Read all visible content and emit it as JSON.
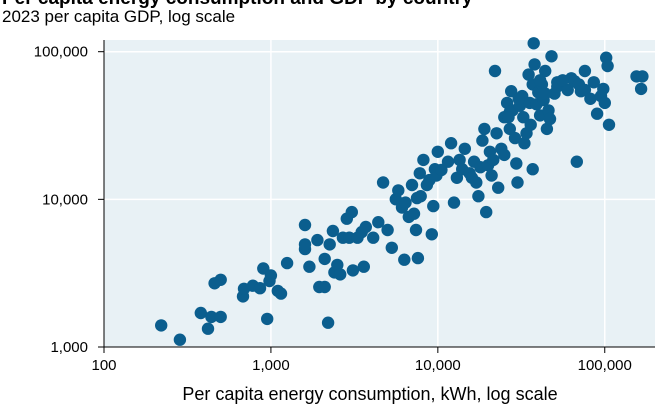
{
  "chart_data": {
    "type": "scatter",
    "title": "Per capita energy consumption and GDP by country",
    "subtitle": "2023 per capita GDP, log scale",
    "xlabel": "Per capita energy consumption, kWh, log scale",
    "ylabel": "",
    "x_scale": "log",
    "y_scale": "log",
    "xlim": [
      100,
      200000
    ],
    "ylim": [
      1000,
      120000
    ],
    "x_ticks": [
      100,
      1000,
      10000,
      100000
    ],
    "x_tick_labels": [
      "100",
      "1,000",
      "10,000",
      "100,000"
    ],
    "y_ticks": [
      1000,
      10000,
      100000
    ],
    "y_tick_labels": [
      "1,000",
      "10,000",
      "100,000"
    ],
    "grid": true,
    "colors": {
      "point": "#0b5e8e",
      "plot_bg": "#e8f1f5",
      "grid": "#ffffff"
    },
    "points": [
      {
        "x": 220,
        "y": 1400
      },
      {
        "x": 285,
        "y": 1120
      },
      {
        "x": 380,
        "y": 1700
      },
      {
        "x": 420,
        "y": 1330
      },
      {
        "x": 440,
        "y": 1600
      },
      {
        "x": 500,
        "y": 1600
      },
      {
        "x": 460,
        "y": 2700
      },
      {
        "x": 500,
        "y": 2850
      },
      {
        "x": 680,
        "y": 2200
      },
      {
        "x": 690,
        "y": 2480
      },
      {
        "x": 780,
        "y": 2600
      },
      {
        "x": 860,
        "y": 2500
      },
      {
        "x": 900,
        "y": 3400
      },
      {
        "x": 980,
        "y": 2800
      },
      {
        "x": 1000,
        "y": 3050
      },
      {
        "x": 950,
        "y": 1550
      },
      {
        "x": 1100,
        "y": 2400
      },
      {
        "x": 1150,
        "y": 2300
      },
      {
        "x": 1250,
        "y": 3700
      },
      {
        "x": 1600,
        "y": 4600
      },
      {
        "x": 1600,
        "y": 4950
      },
      {
        "x": 1600,
        "y": 6700
      },
      {
        "x": 1700,
        "y": 3500
      },
      {
        "x": 1900,
        "y": 5300
      },
      {
        "x": 1950,
        "y": 2550
      },
      {
        "x": 2100,
        "y": 2550
      },
      {
        "x": 2100,
        "y": 3950
      },
      {
        "x": 2200,
        "y": 1460
      },
      {
        "x": 2250,
        "y": 4950
      },
      {
        "x": 2350,
        "y": 6100
      },
      {
        "x": 2400,
        "y": 3200
      },
      {
        "x": 2500,
        "y": 3600
      },
      {
        "x": 2600,
        "y": 3100
      },
      {
        "x": 2700,
        "y": 5500
      },
      {
        "x": 2850,
        "y": 7400
      },
      {
        "x": 2950,
        "y": 5500
      },
      {
        "x": 3050,
        "y": 8200
      },
      {
        "x": 3100,
        "y": 3300
      },
      {
        "x": 3300,
        "y": 5500
      },
      {
        "x": 3500,
        "y": 6000
      },
      {
        "x": 3600,
        "y": 3500
      },
      {
        "x": 3700,
        "y": 6500
      },
      {
        "x": 4100,
        "y": 5500
      },
      {
        "x": 4400,
        "y": 7000
      },
      {
        "x": 4700,
        "y": 13000
      },
      {
        "x": 5000,
        "y": 6200
      },
      {
        "x": 5300,
        "y": 4700
      },
      {
        "x": 5600,
        "y": 10000
      },
      {
        "x": 5800,
        "y": 11500
      },
      {
        "x": 6100,
        "y": 8800
      },
      {
        "x": 6300,
        "y": 3900
      },
      {
        "x": 6400,
        "y": 9500
      },
      {
        "x": 6700,
        "y": 7600
      },
      {
        "x": 7000,
        "y": 12500
      },
      {
        "x": 7200,
        "y": 8000
      },
      {
        "x": 7400,
        "y": 6200
      },
      {
        "x": 7500,
        "y": 10200
      },
      {
        "x": 7600,
        "y": 4000
      },
      {
        "x": 7800,
        "y": 15000
      },
      {
        "x": 7900,
        "y": 10500
      },
      {
        "x": 8200,
        "y": 18500
      },
      {
        "x": 8600,
        "y": 12500
      },
      {
        "x": 8900,
        "y": 13500
      },
      {
        "x": 9200,
        "y": 5800
      },
      {
        "x": 9400,
        "y": 9000
      },
      {
        "x": 9600,
        "y": 16000
      },
      {
        "x": 9800,
        "y": 14500
      },
      {
        "x": 10000,
        "y": 21000
      },
      {
        "x": 10500,
        "y": 15800
      },
      {
        "x": 11500,
        "y": 18000
      },
      {
        "x": 12000,
        "y": 24000
      },
      {
        "x": 12500,
        "y": 9500
      },
      {
        "x": 13000,
        "y": 14000
      },
      {
        "x": 13500,
        "y": 18500
      },
      {
        "x": 14000,
        "y": 16000
      },
      {
        "x": 14500,
        "y": 22000
      },
      {
        "x": 15500,
        "y": 15000
      },
      {
        "x": 16000,
        "y": 14000
      },
      {
        "x": 16500,
        "y": 18000
      },
      {
        "x": 17000,
        "y": 13000
      },
      {
        "x": 17500,
        "y": 10500
      },
      {
        "x": 18000,
        "y": 16500
      },
      {
        "x": 18500,
        "y": 25000
      },
      {
        "x": 19000,
        "y": 30000
      },
      {
        "x": 19500,
        "y": 8200
      },
      {
        "x": 20000,
        "y": 17000
      },
      {
        "x": 20500,
        "y": 21000
      },
      {
        "x": 21000,
        "y": 14500
      },
      {
        "x": 21500,
        "y": 18500
      },
      {
        "x": 22000,
        "y": 74000
      },
      {
        "x": 22500,
        "y": 28000
      },
      {
        "x": 23000,
        "y": 12000
      },
      {
        "x": 24000,
        "y": 22000
      },
      {
        "x": 25000,
        "y": 36000
      },
      {
        "x": 26000,
        "y": 45000
      },
      {
        "x": 27000,
        "y": 30000
      },
      {
        "x": 27500,
        "y": 54000
      },
      {
        "x": 28000,
        "y": 40000
      },
      {
        "x": 29000,
        "y": 26000
      },
      {
        "x": 29500,
        "y": 17500
      },
      {
        "x": 30000,
        "y": 13000
      },
      {
        "x": 31000,
        "y": 43000
      },
      {
        "x": 32000,
        "y": 50000
      },
      {
        "x": 32500,
        "y": 36000
      },
      {
        "x": 33000,
        "y": 24000
      },
      {
        "x": 34000,
        "y": 28000
      },
      {
        "x": 35000,
        "y": 70000
      },
      {
        "x": 35500,
        "y": 45000
      },
      {
        "x": 36000,
        "y": 32000
      },
      {
        "x": 37000,
        "y": 60000
      },
      {
        "x": 37500,
        "y": 114000
      },
      {
        "x": 38000,
        "y": 82000
      },
      {
        "x": 39000,
        "y": 44000
      },
      {
        "x": 40000,
        "y": 53000
      },
      {
        "x": 41000,
        "y": 37000
      },
      {
        "x": 42000,
        "y": 60000
      },
      {
        "x": 43000,
        "y": 47000
      },
      {
        "x": 44000,
        "y": 74000
      },
      {
        "x": 45000,
        "y": 30000
      },
      {
        "x": 46000,
        "y": 40000
      },
      {
        "x": 47000,
        "y": 35000
      },
      {
        "x": 48000,
        "y": 93000
      },
      {
        "x": 50000,
        "y": 52000
      },
      {
        "x": 52000,
        "y": 58000
      },
      {
        "x": 60000,
        "y": 55000
      },
      {
        "x": 63000,
        "y": 66000
      },
      {
        "x": 66000,
        "y": 63000
      },
      {
        "x": 70000,
        "y": 60000
      },
      {
        "x": 72000,
        "y": 54000
      },
      {
        "x": 76000,
        "y": 55000
      },
      {
        "x": 82000,
        "y": 48000
      },
      {
        "x": 86000,
        "y": 62000
      },
      {
        "x": 90000,
        "y": 38000
      },
      {
        "x": 95000,
        "y": 50000
      },
      {
        "x": 98000,
        "y": 56000
      },
      {
        "x": 100000,
        "y": 45000
      },
      {
        "x": 102000,
        "y": 91000
      },
      {
        "x": 104000,
        "y": 80000
      },
      {
        "x": 106000,
        "y": 32000
      },
      {
        "x": 76000,
        "y": 74000
      },
      {
        "x": 155000,
        "y": 68000
      },
      {
        "x": 168000,
        "y": 68000
      },
      {
        "x": 165000,
        "y": 56000
      },
      {
        "x": 68000,
        "y": 18000
      },
      {
        "x": 37000,
        "y": 16000
      },
      {
        "x": 25000,
        "y": 20000
      },
      {
        "x": 27000,
        "y": 39000
      },
      {
        "x": 30500,
        "y": 48000
      },
      {
        "x": 26500,
        "y": 36000
      },
      {
        "x": 41000,
        "y": 64000
      },
      {
        "x": 44000,
        "y": 52000
      },
      {
        "x": 52000,
        "y": 62000
      },
      {
        "x": 56000,
        "y": 64000
      }
    ]
  }
}
